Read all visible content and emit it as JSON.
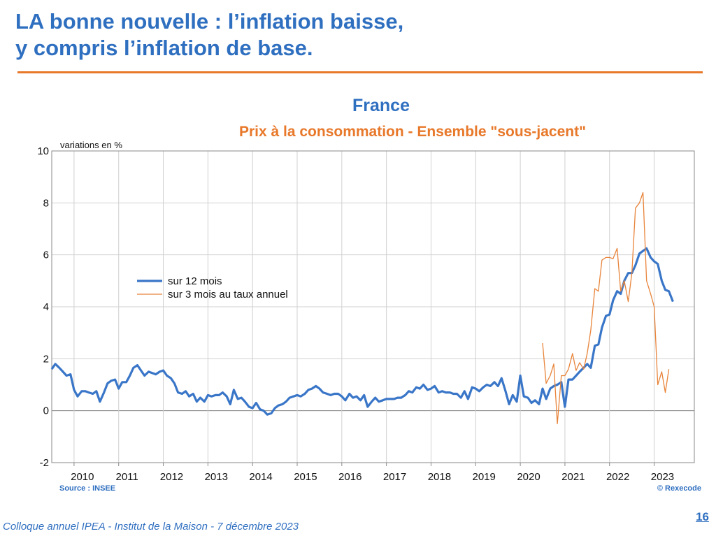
{
  "slide": {
    "title_line1": "LA bonne nouvelle : l’inflation baisse,",
    "title_line2": "y compris l’inflation de base.",
    "source": "Source : INSEE",
    "copyright": "© Rexecode",
    "footer": "Colloque annuel IPEA - Institut de la Maison - 7 décembre 2023",
    "page_number": "16"
  },
  "colors": {
    "accent_blue": "#2f6fc0",
    "accent_orange": "#e8782a",
    "line_blue": "#3a76c8",
    "line_orange": "#e8843a",
    "grid": "#d0d0d0"
  },
  "chart_data": {
    "type": "line",
    "title": "France",
    "subtitle": "Prix à la consommation - Ensemble \"sous-jacent\"",
    "ylabel": "variations en %",
    "ylim": [
      -2,
      10
    ],
    "yticks": [
      -2,
      0,
      2,
      4,
      6,
      8,
      10
    ],
    "xlim": [
      2009.5,
      2023.9
    ],
    "year_labels": [
      "2010",
      "2011",
      "2012",
      "2013",
      "2014",
      "2015",
      "2016",
      "2017",
      "2018",
      "2019",
      "2020",
      "2021",
      "2022",
      "2023"
    ],
    "grid": true,
    "legend_position": "left",
    "series": [
      {
        "name": "sur 12 mois",
        "color": "#3a76c8",
        "points": [
          [
            2009.5,
            1.6
          ],
          [
            2009.58,
            1.8
          ],
          [
            2009.67,
            1.65
          ],
          [
            2009.75,
            1.5
          ],
          [
            2009.83,
            1.35
          ],
          [
            2009.92,
            1.4
          ],
          [
            2010.0,
            0.8
          ],
          [
            2010.08,
            0.55
          ],
          [
            2010.17,
            0.75
          ],
          [
            2010.25,
            0.75
          ],
          [
            2010.33,
            0.7
          ],
          [
            2010.42,
            0.65
          ],
          [
            2010.5,
            0.75
          ],
          [
            2010.58,
            0.35
          ],
          [
            2010.67,
            0.7
          ],
          [
            2010.75,
            1.05
          ],
          [
            2010.83,
            1.15
          ],
          [
            2010.92,
            1.2
          ],
          [
            2011.0,
            0.85
          ],
          [
            2011.08,
            1.1
          ],
          [
            2011.17,
            1.1
          ],
          [
            2011.25,
            1.35
          ],
          [
            2011.33,
            1.65
          ],
          [
            2011.42,
            1.75
          ],
          [
            2011.5,
            1.55
          ],
          [
            2011.58,
            1.35
          ],
          [
            2011.67,
            1.5
          ],
          [
            2011.75,
            1.45
          ],
          [
            2011.83,
            1.4
          ],
          [
            2011.92,
            1.5
          ],
          [
            2012.0,
            1.55
          ],
          [
            2012.08,
            1.35
          ],
          [
            2012.17,
            1.25
          ],
          [
            2012.25,
            1.05
          ],
          [
            2012.33,
            0.7
          ],
          [
            2012.42,
            0.65
          ],
          [
            2012.5,
            0.75
          ],
          [
            2012.58,
            0.55
          ],
          [
            2012.67,
            0.65
          ],
          [
            2012.75,
            0.35
          ],
          [
            2012.83,
            0.5
          ],
          [
            2012.92,
            0.35
          ],
          [
            2013.0,
            0.6
          ],
          [
            2013.08,
            0.55
          ],
          [
            2013.17,
            0.6
          ],
          [
            2013.25,
            0.6
          ],
          [
            2013.33,
            0.7
          ],
          [
            2013.42,
            0.55
          ],
          [
            2013.5,
            0.25
          ],
          [
            2013.58,
            0.8
          ],
          [
            2013.67,
            0.45
          ],
          [
            2013.75,
            0.5
          ],
          [
            2013.83,
            0.35
          ],
          [
            2013.92,
            0.15
          ],
          [
            2014.0,
            0.1
          ],
          [
            2014.08,
            0.3
          ],
          [
            2014.17,
            0.05
          ],
          [
            2014.25,
            0.0
          ],
          [
            2014.33,
            -0.15
          ],
          [
            2014.42,
            -0.1
          ],
          [
            2014.5,
            0.1
          ],
          [
            2014.58,
            0.2
          ],
          [
            2014.67,
            0.25
          ],
          [
            2014.75,
            0.35
          ],
          [
            2014.83,
            0.5
          ],
          [
            2014.92,
            0.55
          ],
          [
            2015.0,
            0.6
          ],
          [
            2015.08,
            0.55
          ],
          [
            2015.17,
            0.65
          ],
          [
            2015.25,
            0.8
          ],
          [
            2015.33,
            0.85
          ],
          [
            2015.42,
            0.95
          ],
          [
            2015.5,
            0.85
          ],
          [
            2015.58,
            0.7
          ],
          [
            2015.67,
            0.65
          ],
          [
            2015.75,
            0.6
          ],
          [
            2015.83,
            0.65
          ],
          [
            2015.92,
            0.65
          ],
          [
            2016.0,
            0.55
          ],
          [
            2016.08,
            0.4
          ],
          [
            2016.17,
            0.65
          ],
          [
            2016.25,
            0.5
          ],
          [
            2016.33,
            0.55
          ],
          [
            2016.42,
            0.4
          ],
          [
            2016.5,
            0.6
          ],
          [
            2016.58,
            0.15
          ],
          [
            2016.67,
            0.35
          ],
          [
            2016.75,
            0.5
          ],
          [
            2016.83,
            0.35
          ],
          [
            2016.92,
            0.4
          ],
          [
            2017.0,
            0.45
          ],
          [
            2017.08,
            0.45
          ],
          [
            2017.17,
            0.45
          ],
          [
            2017.25,
            0.5
          ],
          [
            2017.33,
            0.5
          ],
          [
            2017.42,
            0.6
          ],
          [
            2017.5,
            0.75
          ],
          [
            2017.58,
            0.7
          ],
          [
            2017.67,
            0.9
          ],
          [
            2017.75,
            0.85
          ],
          [
            2017.83,
            1.0
          ],
          [
            2017.92,
            0.8
          ],
          [
            2018.0,
            0.85
          ],
          [
            2018.08,
            0.95
          ],
          [
            2018.17,
            0.7
          ],
          [
            2018.25,
            0.75
          ],
          [
            2018.33,
            0.7
          ],
          [
            2018.42,
            0.7
          ],
          [
            2018.5,
            0.65
          ],
          [
            2018.58,
            0.65
          ],
          [
            2018.67,
            0.5
          ],
          [
            2018.75,
            0.75
          ],
          [
            2018.83,
            0.45
          ],
          [
            2018.92,
            0.9
          ],
          [
            2019.0,
            0.85
          ],
          [
            2019.08,
            0.75
          ],
          [
            2019.17,
            0.9
          ],
          [
            2019.25,
            1.0
          ],
          [
            2019.33,
            0.95
          ],
          [
            2019.42,
            1.1
          ],
          [
            2019.5,
            0.95
          ],
          [
            2019.58,
            1.25
          ],
          [
            2019.67,
            0.75
          ],
          [
            2019.75,
            0.25
          ],
          [
            2019.83,
            0.6
          ],
          [
            2019.92,
            0.35
          ],
          [
            2020.0,
            1.35
          ],
          [
            2020.08,
            0.55
          ],
          [
            2020.17,
            0.5
          ],
          [
            2020.25,
            0.3
          ],
          [
            2020.33,
            0.4
          ],
          [
            2020.42,
            0.25
          ],
          [
            2020.5,
            0.85
          ],
          [
            2020.58,
            0.45
          ],
          [
            2020.67,
            0.85
          ],
          [
            2020.75,
            0.95
          ],
          [
            2020.83,
            1.0
          ],
          [
            2020.92,
            1.1
          ],
          [
            2021.0,
            0.15
          ],
          [
            2021.08,
            1.2
          ],
          [
            2021.17,
            1.2
          ],
          [
            2021.25,
            1.35
          ],
          [
            2021.33,
            1.5
          ],
          [
            2021.42,
            1.65
          ],
          [
            2021.5,
            1.8
          ],
          [
            2021.58,
            1.65
          ],
          [
            2021.67,
            2.5
          ],
          [
            2021.75,
            2.55
          ],
          [
            2021.83,
            3.2
          ],
          [
            2021.92,
            3.65
          ],
          [
            2022.0,
            3.7
          ],
          [
            2022.08,
            4.25
          ],
          [
            2022.17,
            4.6
          ],
          [
            2022.25,
            4.5
          ],
          [
            2022.33,
            5.0
          ],
          [
            2022.42,
            5.3
          ],
          [
            2022.5,
            5.3
          ],
          [
            2022.58,
            5.6
          ],
          [
            2022.67,
            6.05
          ],
          [
            2022.75,
            6.15
          ],
          [
            2022.83,
            6.25
          ],
          [
            2022.92,
            5.9
          ],
          [
            2023.0,
            5.75
          ],
          [
            2023.08,
            5.65
          ],
          [
            2023.17,
            5.0
          ],
          [
            2023.25,
            4.65
          ],
          [
            2023.33,
            4.6
          ],
          [
            2023.42,
            4.2
          ]
        ]
      },
      {
        "name": "sur 3 mois au taux annuel",
        "color": "#e8843a",
        "points": [
          [
            2020.5,
            2.6
          ],
          [
            2020.58,
            1.05
          ],
          [
            2020.67,
            1.35
          ],
          [
            2020.75,
            1.8
          ],
          [
            2020.83,
            -0.5
          ],
          [
            2020.92,
            1.35
          ],
          [
            2021.0,
            1.35
          ],
          [
            2021.08,
            1.6
          ],
          [
            2021.17,
            2.2
          ],
          [
            2021.25,
            1.55
          ],
          [
            2021.33,
            1.85
          ],
          [
            2021.42,
            1.6
          ],
          [
            2021.5,
            2.2
          ],
          [
            2021.58,
            3.1
          ],
          [
            2021.67,
            4.7
          ],
          [
            2021.75,
            4.6
          ],
          [
            2021.83,
            5.8
          ],
          [
            2021.92,
            5.9
          ],
          [
            2022.0,
            5.9
          ],
          [
            2022.08,
            5.85
          ],
          [
            2022.17,
            6.25
          ],
          [
            2022.25,
            4.6
          ],
          [
            2022.33,
            5.0
          ],
          [
            2022.42,
            4.2
          ],
          [
            2022.5,
            5.3
          ],
          [
            2022.58,
            7.8
          ],
          [
            2022.67,
            8.0
          ],
          [
            2022.75,
            8.4
          ],
          [
            2022.83,
            5.0
          ],
          [
            2022.92,
            4.5
          ],
          [
            2023.0,
            4.0
          ],
          [
            2023.08,
            1.0
          ],
          [
            2023.17,
            1.5
          ],
          [
            2023.25,
            0.7
          ],
          [
            2023.33,
            1.6
          ]
        ]
      }
    ]
  }
}
